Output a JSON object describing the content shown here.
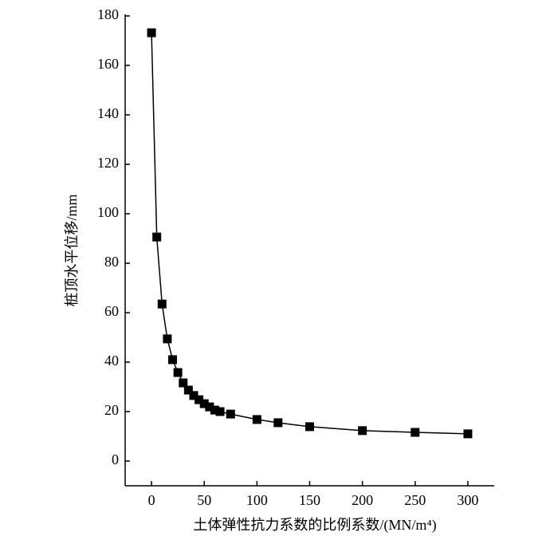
{
  "chart_data": {
    "type": "line",
    "x_label": "土体弹性抗力系数的比例系数/(MN/m⁴)",
    "y_label": "桩顶水平位移/mm",
    "x": [
      0,
      5,
      10,
      15,
      20,
      25,
      30,
      35,
      40,
      45,
      50,
      55,
      60,
      65,
      75,
      100,
      120,
      150,
      200,
      250,
      300
    ],
    "series": [
      {
        "color": "#000000",
        "values": [
          173.2,
          90.6,
          63.5,
          49.4,
          41,
          35.8,
          31.6,
          28.7,
          26.5,
          24.8,
          23.2,
          21.9,
          20.6,
          20,
          19,
          16.8,
          15.5,
          13.9,
          12.3,
          11.6,
          11
        ]
      }
    ],
    "xlim": [
      -25,
      325
    ],
    "xticks": [
      0,
      50,
      100,
      150,
      200,
      250,
      300
    ],
    "ylim": [
      -10,
      180
    ],
    "yticks": [
      0,
      20,
      40,
      60,
      80,
      100,
      120,
      140,
      160,
      180
    ],
    "grid": false
  }
}
